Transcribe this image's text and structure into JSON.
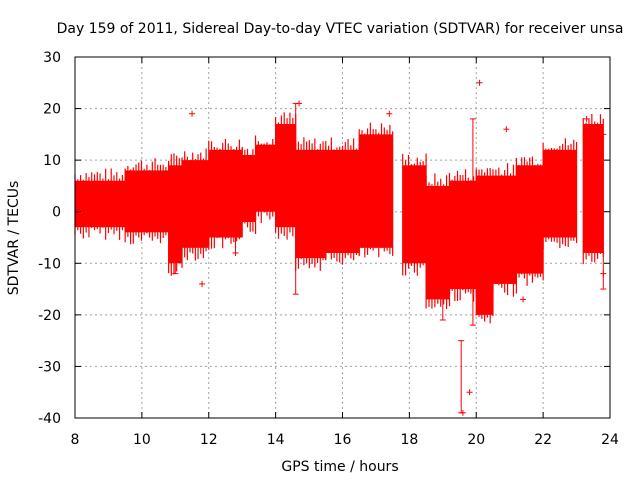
{
  "chart_data": {
    "type": "scatter",
    "title": "Day 159 of 2011, Sidereal Day-to-day VTEC variation (SDTVAR) for receiver unsa",
    "xlabel": "GPS time / hours",
    "ylabel": "SDTVAR / TECUs",
    "xlim": [
      8,
      24
    ],
    "ylim": [
      -40,
      30
    ],
    "xticks": [
      8,
      10,
      12,
      14,
      16,
      18,
      20,
      22,
      24
    ],
    "yticks": [
      -40,
      -30,
      -20,
      -10,
      0,
      10,
      20,
      30
    ],
    "grid": true,
    "series": [
      {
        "name": "SDTVAR",
        "color": "#ff0000",
        "marker": "plus",
        "bands": [
          {
            "x": [
              8.0,
              9.5
            ],
            "low": -3,
            "high": 6
          },
          {
            "x": [
              9.5,
              10.8
            ],
            "low": -4,
            "high": 8
          },
          {
            "x": [
              10.8,
              11.2
            ],
            "low": -10,
            "high": 9
          },
          {
            "x": [
              11.2,
              12.0
            ],
            "low": -7,
            "high": 10
          },
          {
            "x": [
              12.0,
              13.0
            ],
            "low": -5,
            "high": 12
          },
          {
            "x": [
              13.0,
              13.4
            ],
            "low": -2,
            "high": 11
          },
          {
            "x": [
              13.4,
              14.0
            ],
            "low": 0,
            "high": 13
          },
          {
            "x": [
              14.0,
              14.6
            ],
            "low": -3,
            "high": 17
          },
          {
            "x": [
              14.6,
              15.5
            ],
            "low": -9,
            "high": 12
          },
          {
            "x": [
              15.5,
              16.5
            ],
            "low": -8,
            "high": 12
          },
          {
            "x": [
              16.5,
              17.5
            ],
            "low": -7,
            "high": 15
          },
          {
            "x": [
              17.8,
              18.5
            ],
            "low": -10,
            "high": 9
          },
          {
            "x": [
              18.5,
              19.2
            ],
            "low": -17,
            "high": 5
          },
          {
            "x": [
              19.2,
              20.0
            ],
            "low": -15,
            "high": 6
          },
          {
            "x": [
              20.0,
              20.5
            ],
            "low": -20,
            "high": 7
          },
          {
            "x": [
              20.5,
              21.2
            ],
            "low": -14,
            "high": 7
          },
          {
            "x": [
              21.2,
              22.0
            ],
            "low": -12,
            "high": 9
          },
          {
            "x": [
              22.0,
              23.0
            ],
            "low": -5,
            "high": 12
          },
          {
            "x": [
              23.2,
              23.8
            ],
            "low": -8,
            "high": 17
          }
        ],
        "outliers": [
          {
            "x": 11.5,
            "y": 19
          },
          {
            "x": 11.8,
            "y": -14
          },
          {
            "x": 12.8,
            "y": -8
          },
          {
            "x": 14.7,
            "y": 21
          },
          {
            "x": 17.4,
            "y": 19
          },
          {
            "x": 19.8,
            "y": -35
          },
          {
            "x": 19.6,
            "y": -39
          },
          {
            "x": 20.1,
            "y": 25
          },
          {
            "x": 20.9,
            "y": 16
          },
          {
            "x": 21.4,
            "y": -17
          },
          {
            "x": 23.3,
            "y": 18
          },
          {
            "x": 23.8,
            "y": -12
          }
        ],
        "errorbars": [
          {
            "x": 11.0,
            "low": -12,
            "high": 4
          },
          {
            "x": 12.8,
            "low": -8,
            "high": 2
          },
          {
            "x": 14.6,
            "low": -16,
            "high": 21
          },
          {
            "x": 19.0,
            "low": -21,
            "high": -5
          },
          {
            "x": 19.55,
            "low": -39,
            "high": -25
          },
          {
            "x": 19.9,
            "low": -22,
            "high": 18
          },
          {
            "x": 23.8,
            "low": -15,
            "high": 15
          }
        ]
      }
    ]
  }
}
